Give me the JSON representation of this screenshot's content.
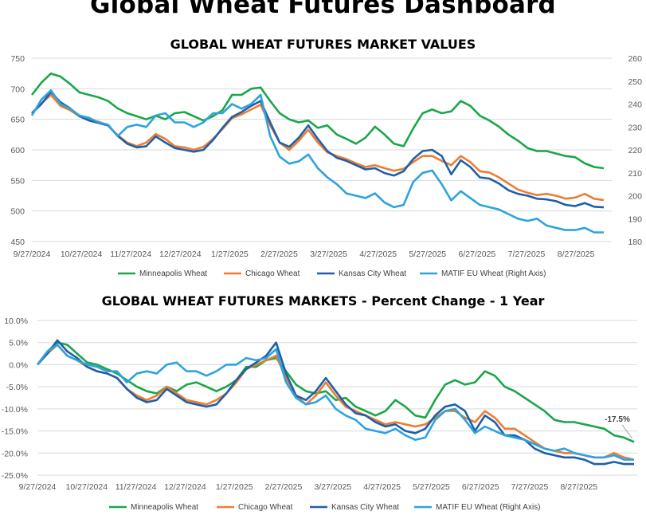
{
  "page": {
    "title": "Global Wheat Futures Dashboard"
  },
  "colors": {
    "minneapolis": "#1aa64a",
    "chicago": "#ed7d31",
    "kansas": "#1f5fa9",
    "matif": "#2ea3dd",
    "grid": "#d9d9d9"
  },
  "chart_data": [
    {
      "type": "line",
      "title": "GLOBAL WHEAT FUTURES MARKET VALUES",
      "x_ticks": [
        "9/27/2024",
        "10/27/2024",
        "11/27/2024",
        "12/27/2024",
        "1/27/2025",
        "2/27/2025",
        "3/27/2025",
        "4/27/2025",
        "5/27/2025",
        "6/27/2025",
        "7/27/2025",
        "8/27/2025"
      ],
      "ylim": [
        450,
        750
      ],
      "y_ticks": [
        "750",
        "700",
        "650",
        "600",
        "550",
        "500",
        "450"
      ],
      "y2lim": [
        180,
        260
      ],
      "y2_ticks": [
        "260",
        "250",
        "240",
        "230",
        "220",
        "210",
        "200",
        "190",
        "180"
      ],
      "series": [
        {
          "name": "Minneapolis Wheat",
          "axis": "left",
          "color_key": "minneapolis",
          "values": [
            690,
            710,
            725,
            720,
            708,
            694,
            690,
            686,
            680,
            668,
            660,
            655,
            650,
            656,
            650,
            660,
            662,
            655,
            648,
            655,
            665,
            690,
            690,
            700,
            702,
            680,
            660,
            650,
            645,
            648,
            636,
            640,
            625,
            618,
            610,
            620,
            638,
            625,
            610,
            606,
            635,
            660,
            666,
            660,
            663,
            680,
            672,
            656,
            648,
            638,
            625,
            615,
            603,
            598,
            598,
            594,
            590,
            588,
            578,
            572,
            570
          ]
        },
        {
          "name": "Chicago Wheat",
          "axis": "left",
          "color_key": "chicago",
          "values": [
            660,
            676,
            690,
            672,
            665,
            655,
            650,
            646,
            640,
            624,
            612,
            606,
            612,
            626,
            618,
            606,
            604,
            600,
            605,
            618,
            634,
            652,
            658,
            666,
            674,
            640,
            612,
            600,
            615,
            633,
            612,
            596,
            590,
            585,
            578,
            572,
            575,
            570,
            566,
            569,
            580,
            590,
            590,
            582,
            575,
            590,
            580,
            565,
            563,
            555,
            545,
            535,
            530,
            526,
            528,
            525,
            520,
            522,
            528,
            520,
            518
          ]
        },
        {
          "name": "Kansas City Wheat",
          "axis": "left",
          "color_key": "kansas",
          "values": [
            660,
            675,
            695,
            678,
            668,
            655,
            648,
            644,
            640,
            623,
            610,
            604,
            606,
            622,
            612,
            603,
            600,
            597,
            600,
            616,
            636,
            654,
            662,
            672,
            680,
            645,
            612,
            605,
            620,
            640,
            618,
            598,
            587,
            582,
            575,
            568,
            570,
            562,
            558,
            565,
            585,
            598,
            600,
            590,
            560,
            583,
            572,
            555,
            553,
            545,
            534,
            528,
            525,
            520,
            519,
            516,
            510,
            508,
            513,
            507,
            506
          ]
        },
        {
          "name": "MATIF EU Wheat (Right Axis)",
          "axis": "right",
          "color_key": "matif",
          "values": [
            235,
            242,
            246,
            240,
            238,
            235,
            234,
            232,
            231,
            226,
            230,
            231,
            230,
            235,
            236,
            232,
            232,
            230,
            232,
            236,
            236,
            240,
            238,
            240,
            244,
            226,
            217,
            214,
            215,
            218,
            212,
            208,
            205,
            201,
            200,
            199,
            201,
            197,
            195,
            196,
            206,
            210,
            211,
            205,
            198,
            202,
            199,
            196,
            195,
            194,
            192,
            190,
            189,
            190,
            187,
            186,
            185,
            185,
            186,
            184,
            184
          ]
        }
      ]
    },
    {
      "type": "line",
      "title": "GLOBAL WHEAT FUTURES MARKETS - Percent Change - 1 Year",
      "x_ticks": [
        "9/27/2024",
        "10/27/2024",
        "11/27/2024",
        "12/27/2024",
        "1/27/2025",
        "2/27/2025",
        "3/27/2025",
        "4/27/2025",
        "5/27/2025",
        "6/27/2025",
        "7/27/2025",
        "8/27/2025"
      ],
      "ylim": [
        -25,
        10
      ],
      "y_ticks": [
        "10.0%",
        "5.0%",
        "0.0%",
        "-5.0%",
        "-10.0%",
        "-15.0%",
        "-20.0%",
        "-25.0%"
      ],
      "annotation": "-17.5%",
      "series": [
        {
          "name": "Minneapolis Wheat",
          "color_key": "minneapolis",
          "values": [
            0,
            3,
            5,
            4.5,
            2.5,
            0.5,
            0,
            -1,
            -2,
            -3.5,
            -5,
            -6,
            -6.5,
            -5,
            -6,
            -4.5,
            -4,
            -5,
            -6,
            -5,
            -3.5,
            -0.5,
            -0.5,
            1,
            1.5,
            -1.5,
            -4.5,
            -6,
            -6.5,
            -6,
            -8,
            -7.5,
            -9.5,
            -10.5,
            -11.5,
            -10.5,
            -8,
            -9.5,
            -11.5,
            -12,
            -8,
            -4.5,
            -3.5,
            -4.5,
            -4,
            -1.5,
            -2.5,
            -5,
            -6,
            -7.5,
            -9,
            -10.5,
            -12.5,
            -13,
            -13,
            -13.5,
            -14,
            -14.5,
            -16,
            -16.5,
            -17.5
          ]
        },
        {
          "name": "Chicago Wheat",
          "color_key": "chicago",
          "values": [
            0,
            2.5,
            4.5,
            2,
            1,
            -0.5,
            -1.5,
            -2,
            -3,
            -5.5,
            -7,
            -8,
            -7,
            -5,
            -6.5,
            -8,
            -8.5,
            -9,
            -8,
            -6.5,
            -4,
            -1,
            0,
            1,
            2,
            -3,
            -7,
            -9,
            -7,
            -4,
            -7,
            -9.5,
            -10.5,
            -11.5,
            -12.5,
            -13.5,
            -13,
            -13.5,
            -14,
            -13.5,
            -12,
            -10.5,
            -10.5,
            -12,
            -13,
            -10.5,
            -12,
            -14.5,
            -14.5,
            -16,
            -17.5,
            -19,
            -19.5,
            -20,
            -20,
            -20.5,
            -21,
            -21,
            -20,
            -21,
            -21.5
          ]
        },
        {
          "name": "Kansas City Wheat",
          "color_key": "kansas",
          "values": [
            0,
            2.5,
            5.5,
            3,
            1.5,
            -0.5,
            -1.5,
            -2,
            -3,
            -5.5,
            -7.5,
            -8.5,
            -8,
            -5.5,
            -7,
            -8.5,
            -9,
            -9.5,
            -9,
            -6.5,
            -3.5,
            -1,
            0.5,
            2,
            5,
            -2,
            -7,
            -8,
            -6,
            -3,
            -6,
            -9,
            -11,
            -11.5,
            -13,
            -14,
            -13.5,
            -15,
            -15.5,
            -14.5,
            -11.5,
            -9.5,
            -9,
            -10.5,
            -15,
            -11.5,
            -13,
            -16,
            -16,
            -17,
            -19,
            -20,
            -20.5,
            -21,
            -21,
            -21.5,
            -22.5,
            -22.5,
            -22,
            -22.5,
            -22.5
          ]
        },
        {
          "name": "MATIF EU Wheat (Right Axis)",
          "color_key": "matif",
          "values": [
            0,
            3,
            4.5,
            2,
            1,
            0,
            -0.5,
            -1.5,
            -1.5,
            -4,
            -2,
            -1.5,
            -2,
            0,
            0.5,
            -1.5,
            -1.5,
            -2.5,
            -1.5,
            0,
            0,
            1.5,
            1,
            1.5,
            3.5,
            -4,
            -7.5,
            -9,
            -8.5,
            -7,
            -10,
            -11.5,
            -12.5,
            -14.5,
            -15,
            -15.5,
            -14.5,
            -16,
            -17,
            -16.5,
            -12.5,
            -10.5,
            -10,
            -12.5,
            -15.5,
            -14,
            -15,
            -16,
            -16.5,
            -17,
            -18,
            -19,
            -19.5,
            -19,
            -20,
            -20.5,
            -21,
            -21,
            -20.5,
            -21.5,
            -21.5
          ]
        }
      ]
    }
  ]
}
